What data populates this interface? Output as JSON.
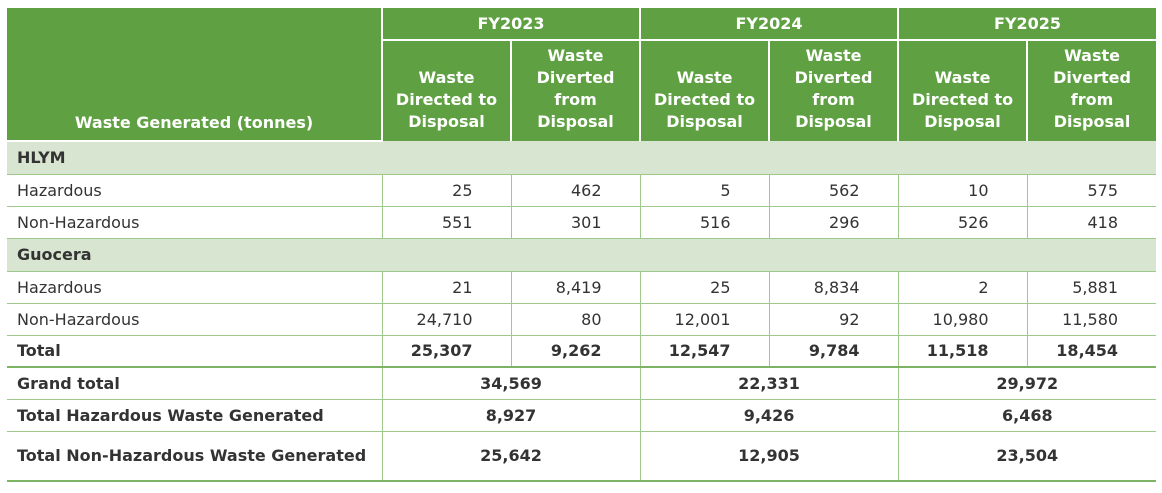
{
  "header": {
    "row_label": "Waste Generated (tonnes)",
    "years": [
      "FY2023",
      "FY2024",
      "FY2025"
    ],
    "col_a": [
      "Waste",
      "Directed to",
      "Disposal"
    ],
    "col_b": [
      "Waste",
      "Diverted",
      "from",
      "Disposal"
    ]
  },
  "groups": [
    {
      "name": "HLYM",
      "rows": [
        {
          "label": "Hazardous",
          "values": [
            "25",
            "462",
            "5",
            "562",
            "10",
            "575"
          ]
        },
        {
          "label": "Non-Hazardous",
          "values": [
            "551",
            "301",
            "516",
            "296",
            "526",
            "418"
          ]
        }
      ]
    },
    {
      "name": "Guocera",
      "rows": [
        {
          "label": "Hazardous",
          "values": [
            "21",
            "8,419",
            "25",
            "8,834",
            "2",
            "5,881"
          ]
        },
        {
          "label": "Non-Hazardous",
          "values": [
            "24,710",
            "80",
            "12,001",
            "92",
            "10,980",
            "11,580"
          ]
        }
      ]
    }
  ],
  "total": {
    "label": "Total",
    "values": [
      "25,307",
      "9,262",
      "12,547",
      "9,784",
      "11,518",
      "18,454"
    ]
  },
  "summary": [
    {
      "label": "Grand total",
      "values": [
        "34,569",
        "22,331",
        "29,972"
      ]
    },
    {
      "label": "Total Hazardous Waste Generated",
      "values": [
        "8,927",
        "9,426",
        "6,468"
      ]
    },
    {
      "label": "Total Non-Hazardous Waste Generated",
      "values": [
        "25,642",
        "12,905",
        "23,504"
      ]
    }
  ]
}
